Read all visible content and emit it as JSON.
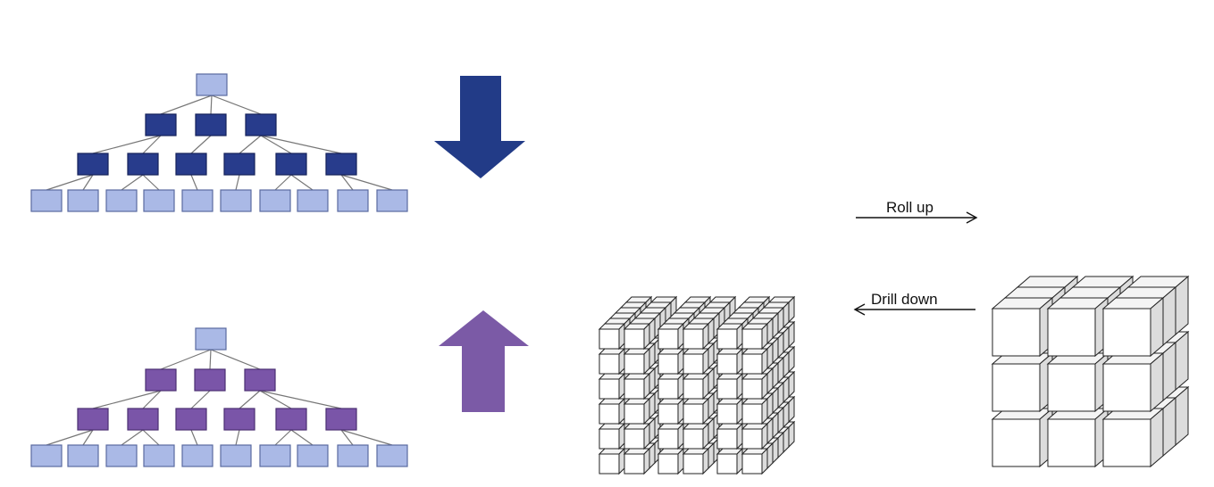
{
  "colors": {
    "background": "#ffffff",
    "node_light": "#aab9e6",
    "node_light_stroke": "#5a6aa0",
    "top_tree_dark": "#283c8c",
    "top_tree_dark_stroke": "#15215a",
    "bottom_tree_dark": "#7a55a8",
    "bottom_tree_dark_stroke": "#4b2f72",
    "down_arrow": "#223b87",
    "up_arrow": "#7b5aa6",
    "connector": "#777777",
    "cube_face": "#ffffff",
    "cube_edge": "#222222"
  },
  "trees": [
    {
      "name": "top-hierarchy",
      "levels": [
        1,
        3,
        6,
        10
      ],
      "dark_levels": [
        1,
        2
      ]
    },
    {
      "name": "bottom-hierarchy",
      "levels": [
        1,
        3,
        6,
        10
      ],
      "dark_levels": [
        1,
        2
      ]
    }
  ],
  "arrows": {
    "vertical": [
      {
        "name": "down-arrow",
        "direction": "down"
      },
      {
        "name": "up-arrow",
        "direction": "up"
      }
    ],
    "operations": [
      {
        "name": "roll-up",
        "label": "Roll up",
        "direction": "right"
      },
      {
        "name": "drill-down",
        "label": "Drill down",
        "direction": "left"
      }
    ]
  },
  "cubes": [
    {
      "name": "detailed-cube",
      "cols": 6,
      "rows": 6,
      "depth": 6
    },
    {
      "name": "aggregated-cube",
      "cols": 3,
      "rows": 3,
      "depth": 3
    }
  ]
}
